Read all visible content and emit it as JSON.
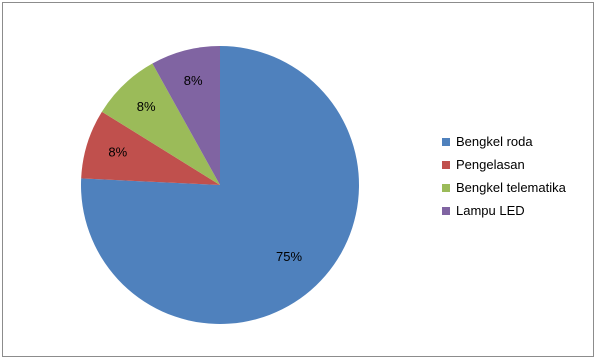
{
  "chart_data": {
    "type": "pie",
    "title": "",
    "categories": [
      "Bengkel roda",
      "Pengelasan",
      "Bengkel telematika",
      "Lampu LED"
    ],
    "values": [
      75,
      8,
      8,
      8
    ],
    "data_labels": [
      "75%",
      "8%",
      "8%",
      "8%"
    ],
    "colors": [
      "#4f81bd",
      "#c0504d",
      "#9bbb59",
      "#8064a2"
    ],
    "legend_position": "right",
    "start": "12 o'clock, clockwise"
  }
}
